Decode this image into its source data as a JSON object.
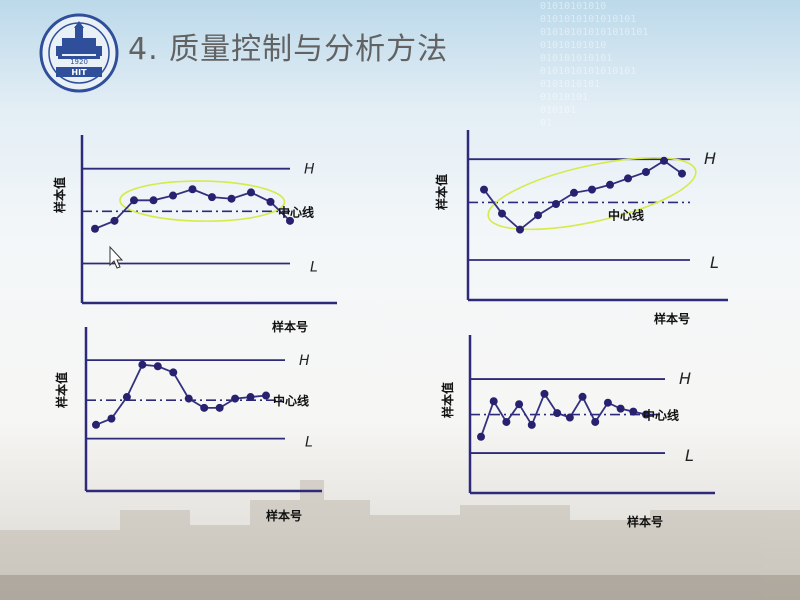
{
  "slide": {
    "title": "4. 质量控制与分析方法",
    "logo": {
      "text": "HIT",
      "year": "1920"
    },
    "binary_text": "01010101010\n0101010101010101\n010101010101010101\n01010101010\n010101010101\n0101010101010101\n0101010101\n01010101\n010101\n01"
  },
  "colors": {
    "axis": "#2e2a7a",
    "line": "#33317f",
    "dot": "#272170",
    "ellipse": "#d6ea4a"
  },
  "chart_data": [
    {
      "type": "line",
      "ylabel": "样本值",
      "xlabel": "样本号",
      "upper_label": "H",
      "lower_label": "L",
      "center_label": "中心线",
      "ylim": [
        0,
        10
      ],
      "upper": 8.5,
      "center": 5.8,
      "lower": 2.5,
      "x": [
        1,
        2,
        3,
        4,
        5,
        6,
        7,
        8,
        9,
        10,
        11
      ],
      "values": [
        4.7,
        5.2,
        6.5,
        6.5,
        6.8,
        7.2,
        6.7,
        6.6,
        7.0,
        6.4,
        5.2
      ],
      "highlight": {
        "type": "ellipse",
        "from": 3,
        "to": 10
      }
    },
    {
      "type": "line",
      "ylabel": "样本值",
      "xlabel": "样本号",
      "upper_label": "H",
      "lower_label": "L",
      "center_label": "中心线",
      "ylim": [
        0,
        10
      ],
      "upper": 8.8,
      "center": 6.1,
      "lower": 2.5,
      "x": [
        1,
        2,
        3,
        4,
        5,
        6,
        7,
        8,
        9,
        10,
        11,
        12
      ],
      "values": [
        6.9,
        5.4,
        4.4,
        5.3,
        6.0,
        6.7,
        6.9,
        7.2,
        7.6,
        8.0,
        8.7,
        7.9
      ],
      "highlight": {
        "type": "ellipse",
        "from": 2,
        "to": 12
      }
    },
    {
      "type": "line",
      "ylabel": "样本值",
      "xlabel": "样本号",
      "upper_label": "H",
      "lower_label": "L",
      "center_label": "中心线",
      "ylim": [
        0,
        10
      ],
      "upper": 8.5,
      "center": 5.9,
      "lower": 3.4,
      "x": [
        1,
        2,
        3,
        4,
        5,
        6,
        7,
        8,
        9,
        10,
        11,
        12
      ],
      "values": [
        4.3,
        4.7,
        6.1,
        8.2,
        8.1,
        7.7,
        6.0,
        5.4,
        5.4,
        6.0,
        6.1,
        6.2
      ]
    },
    {
      "type": "line",
      "ylabel": "样本值",
      "xlabel": "样本号",
      "upper_label": "H",
      "lower_label": "L",
      "center_label": "中心线",
      "ylim": [
        0,
        10
      ],
      "upper": 7.7,
      "center": 5.3,
      "lower": 2.7,
      "x": [
        1,
        2,
        3,
        4,
        5,
        6,
        7,
        8,
        9,
        10,
        11,
        12,
        13,
        14
      ],
      "values": [
        3.8,
        6.2,
        4.8,
        6.0,
        4.6,
        6.7,
        5.4,
        5.1,
        6.5,
        4.8,
        6.1,
        5.7,
        5.5,
        5.3
      ]
    }
  ]
}
